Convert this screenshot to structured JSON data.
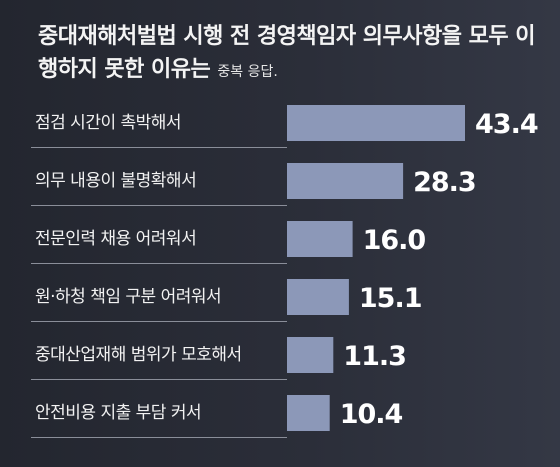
{
  "chart_data": {
    "type": "bar",
    "orientation": "horizontal",
    "title": "중대재해처벌법 시행 전 경영책임자 의무사항을 모두 이행하지 못한 이유는",
    "subtitle": "중복 응답.",
    "categories": [
      "점검 시간이 촉박해서",
      "의무 내용이 불명확해서",
      "전문인력 채용 어려워서",
      "원·하청 책임 구분 어려워서",
      "중대산업재해 범위가 모호해서",
      "안전비용 지출 부담 커서"
    ],
    "values": [
      43.4,
      28.3,
      16.0,
      15.1,
      11.3,
      10.4
    ],
    "value_labels": [
      "43.4",
      "28.3",
      "16.0",
      "15.1",
      "11.3",
      "10.4"
    ],
    "xlim": [
      0,
      43.4
    ],
    "bar_color": "#8c98b8",
    "grid": false,
    "legend": "none"
  }
}
